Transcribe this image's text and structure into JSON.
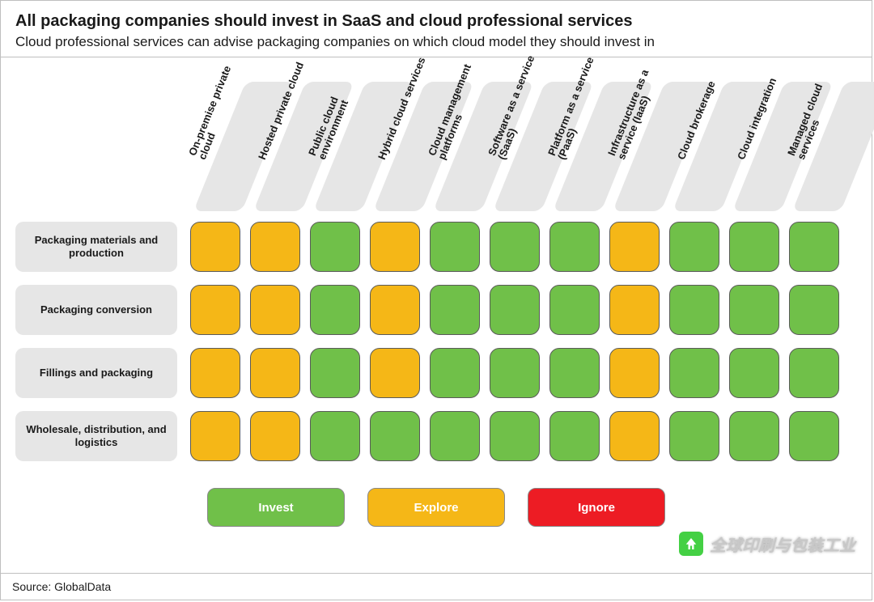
{
  "title": "All packaging companies should invest in SaaS and cloud professional services",
  "subtitle": "Cloud professional services can advise packaging companies on which cloud model they should invest in",
  "source": "Source: GlobalData",
  "watermark": "全球印刷与包装工业",
  "colors": {
    "invest": "#70c049",
    "explore": "#f5b717",
    "ignore": "#ed1c24",
    "header_box": "#e6e6e6",
    "cell_border": "#5a5a5a",
    "background": "#ffffff"
  },
  "legend": [
    {
      "label": "Invest",
      "color_key": "invest"
    },
    {
      "label": "Explore",
      "color_key": "explore"
    },
    {
      "label": "Ignore",
      "color_key": "ignore"
    }
  ],
  "columns": [
    {
      "label_l1": "On-premise private",
      "label_l2": "cloud"
    },
    {
      "label_l1": "Hosted private cloud",
      "label_l2": ""
    },
    {
      "label_l1": "Public cloud",
      "label_l2": "environment"
    },
    {
      "label_l1": "Hybrid cloud services",
      "label_l2": ""
    },
    {
      "label_l1": "Cloud management",
      "label_l2": "platforms"
    },
    {
      "label_l1": "Software as a service",
      "label_l2": "(SaaS)"
    },
    {
      "label_l1": "Platform as a service",
      "label_l2": "(PaaS)"
    },
    {
      "label_l1": "Infrastructure as a",
      "label_l2": "service (IaaS)"
    },
    {
      "label_l1": "Cloud brokerage",
      "label_l2": ""
    },
    {
      "label_l1": "Cloud integration",
      "label_l2": ""
    },
    {
      "label_l1": "Managed cloud",
      "label_l2": "services"
    }
  ],
  "rows": [
    {
      "label": "Packaging materials and production",
      "cells": [
        "explore",
        "explore",
        "invest",
        "explore",
        "invest",
        "invest",
        "invest",
        "explore",
        "invest",
        "invest",
        "invest"
      ]
    },
    {
      "label": "Packaging conversion",
      "cells": [
        "explore",
        "explore",
        "invest",
        "explore",
        "invest",
        "invest",
        "invest",
        "explore",
        "invest",
        "invest",
        "invest"
      ]
    },
    {
      "label": "Fillings and packaging",
      "cells": [
        "explore",
        "explore",
        "invest",
        "explore",
        "invest",
        "invest",
        "invest",
        "explore",
        "invest",
        "invest",
        "invest"
      ]
    },
    {
      "label": "Wholesale, distribution, and logistics",
      "cells": [
        "explore",
        "explore",
        "invest",
        "invest",
        "invest",
        "invest",
        "invest",
        "explore",
        "invest",
        "invest",
        "invest"
      ]
    }
  ]
}
